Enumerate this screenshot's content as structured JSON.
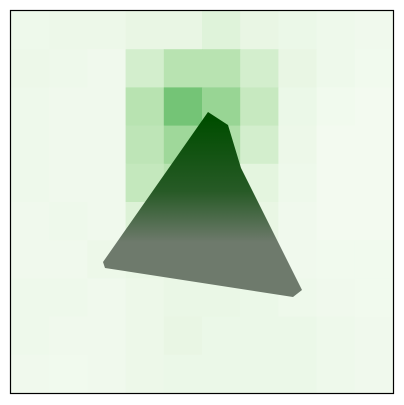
{
  "chart_data": {
    "type": "heatmap",
    "title": "",
    "xlabel": "",
    "ylabel": "",
    "grid": false,
    "legend": "none",
    "colormap": "Greens",
    "vmin": 0,
    "vmax": 1,
    "rows": 10,
    "cols": 10,
    "values": [
      [
        0.06,
        0.07,
        0.07,
        0.1,
        0.1,
        0.15,
        0.1,
        0.08,
        0.06,
        0.05
      ],
      [
        0.07,
        0.06,
        0.05,
        0.2,
        0.3,
        0.3,
        0.2,
        0.1,
        0.06,
        0.04
      ],
      [
        0.06,
        0.05,
        0.05,
        0.3,
        0.5,
        0.4,
        0.25,
        0.08,
        0.04,
        0.03
      ],
      [
        0.06,
        0.05,
        0.05,
        0.28,
        0.38,
        0.33,
        0.2,
        0.07,
        0.03,
        0.03
      ],
      [
        0.06,
        0.05,
        0.05,
        0.26,
        0.3,
        0.27,
        0.13,
        0.06,
        0.03,
        0.03
      ],
      [
        0.05,
        0.06,
        0.05,
        0.16,
        0.2,
        0.18,
        0.1,
        0.05,
        0.03,
        0.03
      ],
      [
        0.05,
        0.05,
        0.07,
        0.09,
        0.1,
        0.1,
        0.07,
        0.05,
        0.04,
        0.04
      ],
      [
        0.06,
        0.06,
        0.05,
        0.07,
        0.09,
        0.09,
        0.08,
        0.06,
        0.05,
        0.04
      ],
      [
        0.06,
        0.05,
        0.05,
        0.07,
        0.1,
        0.08,
        0.08,
        0.08,
        0.06,
        0.05
      ],
      [
        0.05,
        0.04,
        0.05,
        0.07,
        0.08,
        0.08,
        0.08,
        0.08,
        0.06,
        0.05
      ]
    ],
    "overlay": {
      "shape": "triangle",
      "colors": [
        "#004d00",
        "#6e7a6c"
      ]
    }
  }
}
